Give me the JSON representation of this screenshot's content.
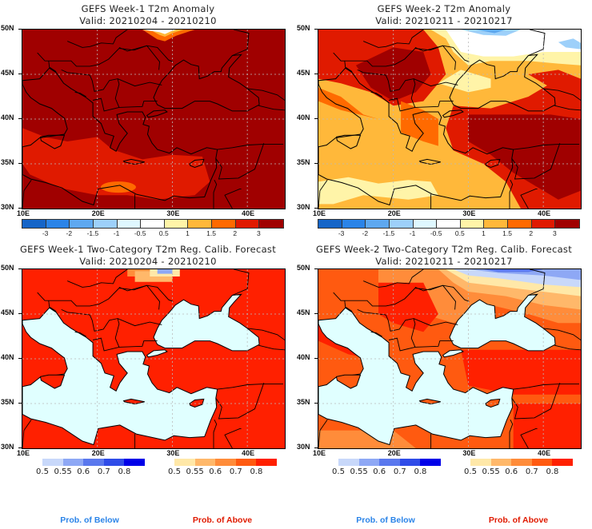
{
  "chart_data": [
    {
      "type": "heatmap",
      "title": "GEFS Week-1 T2m Anomaly",
      "subtitle": "Valid: 20210204 - 20210210",
      "xlabel": "",
      "ylabel": "",
      "x_ticks": [
        "10E",
        "20E",
        "30E",
        "40E"
      ],
      "y_ticks": [
        "50N",
        "45N",
        "40N",
        "35N",
        "30N"
      ],
      "xlim": [
        10,
        45
      ],
      "ylim": [
        30,
        50
      ],
      "grid": true,
      "colorbar": {
        "levels": [
          "-3",
          "-2",
          "-1.5",
          "-1",
          "-0.5",
          "0.5",
          "1",
          "1.5",
          "2",
          "3"
        ],
        "colors": [
          "#1565c8",
          "#2b84e8",
          "#5ea8f0",
          "#9dd0fa",
          "#dff8ff",
          "#ffffff",
          "#fff4a8",
          "#ffb83a",
          "#ff6a00",
          "#e01a00",
          "#a00000"
        ]
      },
      "dominant_value": "3+",
      "notes": "Nearly all land > 3; small near-normal area near 29E 49-50N"
    },
    {
      "type": "heatmap",
      "title": "GEFS Week-2 T2m Anomaly",
      "subtitle": "Valid: 20210211 - 20210217",
      "x_ticks": [
        "10E",
        "20E",
        "30E",
        "40E"
      ],
      "y_ticks": [
        "50N",
        "45N",
        "40N",
        "35N",
        "30N"
      ],
      "xlim": [
        10,
        45
      ],
      "ylim": [
        30,
        50
      ],
      "grid": true,
      "colorbar": {
        "levels": [
          "-3",
          "-2",
          "-1.5",
          "-1",
          "-0.5",
          "0.5",
          "1",
          "1.5",
          "2",
          "3"
        ],
        "colors": [
          "#1565c8",
          "#2b84e8",
          "#5ea8f0",
          "#9dd0fa",
          "#dff8ff",
          "#ffffff",
          "#fff4a8",
          "#ffb83a",
          "#ff6a00",
          "#e01a00",
          "#a00000"
        ]
      }
    },
    {
      "type": "heatmap",
      "title": "GEFS Week-1 Two-Category T2m Reg. Calib. Forecast",
      "subtitle": "Valid: 20210204 - 20210210",
      "x_ticks": [
        "10E",
        "20E",
        "30E",
        "40E"
      ],
      "y_ticks": [
        "50N",
        "45N",
        "40N",
        "35N",
        "30N"
      ],
      "xlim": [
        10,
        45
      ],
      "ylim": [
        30,
        50
      ],
      "grid": true,
      "colorbar_below": {
        "levels": [
          "0.5",
          "0.55",
          "0.6",
          "0.7",
          "0.8"
        ],
        "colors": [
          "#c8d8fa",
          "#8ea8f5",
          "#5a78ee",
          "#2f4ce8",
          "#0000e8"
        ],
        "label": "Prob. of Below"
      },
      "colorbar_above": {
        "levels": [
          "0.5",
          "0.55",
          "0.6",
          "0.7",
          "0.8"
        ],
        "colors": [
          "#ffe8a8",
          "#ffb86a",
          "#ff8c3a",
          "#ff5a10",
          "#ff2000"
        ],
        "label": "Prob. of Above"
      }
    },
    {
      "type": "heatmap",
      "title": "GEFS Week-2 Two-Category T2m Reg. Calib. Forecast",
      "subtitle": "Valid: 20210211 - 20210217",
      "x_ticks": [
        "10E",
        "20E",
        "30E",
        "40E"
      ],
      "y_ticks": [
        "50N",
        "45N",
        "40N",
        "35N",
        "30N"
      ],
      "xlim": [
        10,
        45
      ],
      "ylim": [
        30,
        50
      ],
      "grid": true,
      "colorbar_below": {
        "levels": [
          "0.5",
          "0.55",
          "0.6",
          "0.7",
          "0.8"
        ],
        "colors": [
          "#c8d8fa",
          "#8ea8f5",
          "#5a78ee",
          "#2f4ce8",
          "#0000e8"
        ],
        "label": "Prob. of Below"
      },
      "colorbar_above": {
        "levels": [
          "0.5",
          "0.55",
          "0.6",
          "0.7",
          "0.8"
        ],
        "colors": [
          "#ffe8a8",
          "#ffb86a",
          "#ff8c3a",
          "#ff5a10",
          "#ff2000"
        ],
        "label": "Prob. of Above"
      }
    }
  ],
  "colors": {
    "sea": "#e0ffff",
    "prob_below_text": "#2b84e8",
    "prob_above_text": "#e01a00"
  }
}
